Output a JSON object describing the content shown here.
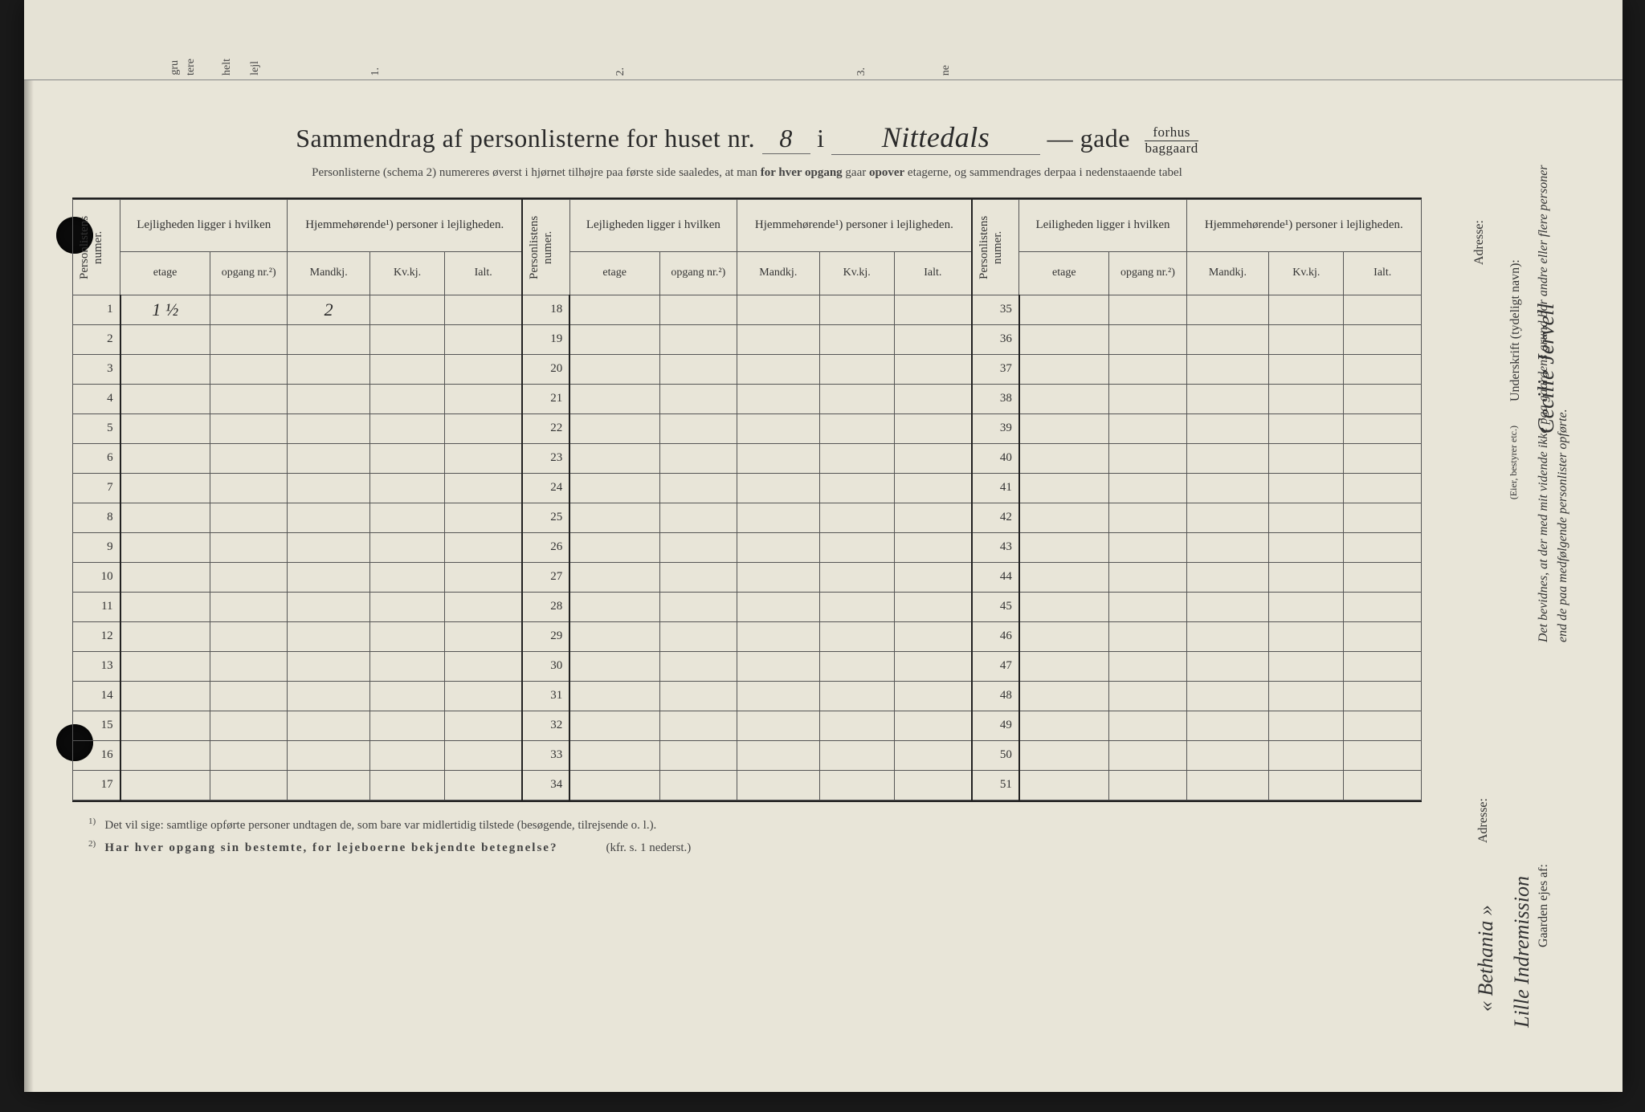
{
  "title": {
    "prefix": "Sammendrag af personlisterne for huset nr.",
    "house_number": "8",
    "sep_i": "i",
    "street_name": "Nittedals",
    "dash": "—",
    "gade": "gade",
    "fraction_top": "forhus",
    "fraction_bottom": "baggaard"
  },
  "subtitle": {
    "text1": "Personlisterne (schema 2) numereres øverst i hjørnet tilhøjre paa første side saaledes, at man ",
    "bold1": "for hver opgang",
    "text2": " gaar ",
    "bold2": "opover",
    "text3": " etagerne, og sammendrages derpaa i nedenstaaende tabel"
  },
  "headers": {
    "personlistens_numer": "Personlistens numer.",
    "lejligheden": "Lejligheden ligger i hvilken",
    "leiligheden": "Leiligheden ligger i hvilken",
    "hjemmehorende": "Hjemmehørende¹) personer i lejligheden.",
    "etage": "etage",
    "opgang": "opgang nr.²)",
    "mandkj": "Mandkj.",
    "kvkj": "Kv.kj.",
    "ialt": "Ialt."
  },
  "rows": {
    "block1": [
      1,
      2,
      3,
      4,
      5,
      6,
      7,
      8,
      9,
      10,
      11,
      12,
      13,
      14,
      15,
      16,
      17
    ],
    "block2": [
      18,
      19,
      20,
      21,
      22,
      23,
      24,
      25,
      26,
      27,
      28,
      29,
      30,
      31,
      32,
      33,
      34
    ],
    "block3": [
      35,
      36,
      37,
      38,
      39,
      40,
      41,
      42,
      43,
      44,
      45,
      46,
      47,
      48,
      49,
      50,
      51
    ]
  },
  "handwritten": {
    "row1_etage": "1 ½",
    "row1_mandkj": "2"
  },
  "footnotes": {
    "f1_sup": "1)",
    "f1": "Det vil sige: samtlige opførte personer undtagen de, som bare var midlertidig tilstede (besøgende, tilrejsende o. l.).",
    "f2_sup": "2)",
    "f2": "Har hver opgang sin bestemte, for lejeboerne bekjendte betegnelse?",
    "f2_ref": "(kfr. s. 1 nederst.)"
  },
  "right_margin": {
    "attestation": "Det bevidnes, at der med mit vidende ikke paa gaardens grund bor andre eller flere personer end de paa medfølgende personlister opførte.",
    "underskrift_label": "Underskrift (tydeligt navn):",
    "signature": "Cecilie Jervell",
    "eier_note": "(Eier, bestyrer etc.)",
    "adresse_label_top": "Adresse:",
    "gaarden_label": "Gaarden ejes af:",
    "owner": "Lille Indremission",
    "adresse_label_bot": "Adresse:",
    "adresse_value": "« Bethania »"
  },
  "top_strip_labels": [
    "gru",
    "tere",
    "helt",
    "lejl",
    "1.",
    "2.",
    "3.",
    "ne"
  ],
  "colors": {
    "paper": "#e8e5d8",
    "ink": "#2a2a2a",
    "rule": "#555555"
  }
}
